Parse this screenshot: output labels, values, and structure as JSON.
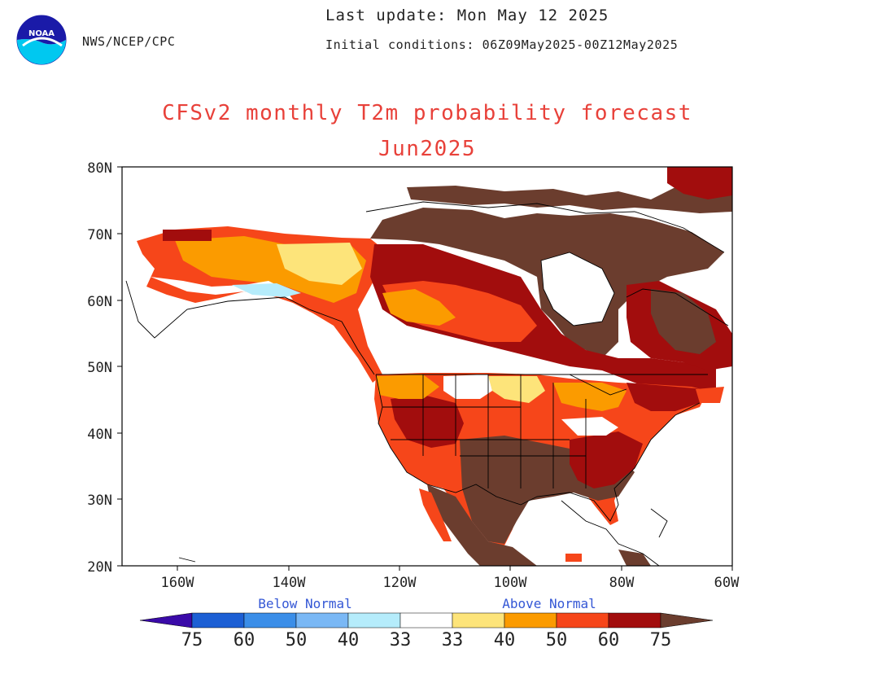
{
  "header": {
    "agency": "NWS/NCEP/CPC",
    "last_update": "Last update: Mon May 12 2025",
    "initial_conditions": "Initial conditions: 06Z09May2025-00Z12May2025",
    "logo_text": "NOAA"
  },
  "title": {
    "line1": "CFSv2 monthly T2m probability forecast",
    "line2": "Jun2025"
  },
  "map": {
    "projection": "lat-lon",
    "lat_range": [
      20,
      80
    ],
    "lon_range": [
      -170,
      -60
    ],
    "lat_ticks": [
      "80N",
      "70N",
      "60N",
      "50N",
      "40N",
      "30N",
      "20N"
    ],
    "lon_ticks": [
      "160W",
      "140W",
      "120W",
      "100W",
      "80W",
      "60W"
    ]
  },
  "legend": {
    "below_label": "Below Normal",
    "above_label": "Above Normal",
    "categories": [
      {
        "label": "75",
        "color": "#3a0aa8"
      },
      {
        "label": "60",
        "color": "#1c5fd4"
      },
      {
        "label": "50",
        "color": "#3b8ee8"
      },
      {
        "label": "40",
        "color": "#7ab8f5"
      },
      {
        "label": "33",
        "color": "#b5ecfb"
      },
      {
        "label": "33",
        "color": "#ffffff"
      },
      {
        "label": "40",
        "color": "#fde47a"
      },
      {
        "label": "50",
        "color": "#fb9b00"
      },
      {
        "label": "60",
        "color": "#f6461a"
      },
      {
        "label": "75",
        "color": "#a20d0d"
      },
      {
        "label": "",
        "color": "#6b3d2e"
      }
    ]
  },
  "colors": {
    "above_40": "#fde47a",
    "above_50": "#fb9b00",
    "above_60": "#f6461a",
    "above_75": "#a20d0d",
    "above_max": "#6b3d2e",
    "below_33": "#b5ecfb",
    "below_40": "#7ab8f5",
    "below_50": "#3b8ee8",
    "title": "#e8413a",
    "legend_label": "#3457d5"
  }
}
